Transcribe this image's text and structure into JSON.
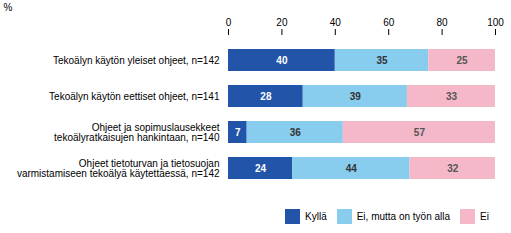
{
  "chart_data": {
    "type": "bar",
    "orientation": "horizontal",
    "stacked": true,
    "data_labels": true,
    "xlabel": "%",
    "categories": [
      "Tekoälyn käytön yleiset ohjeet, n=142",
      "Tekoälyn käytön eettiset ohjeet, n=141",
      "Ohjeet ja sopimuslausekkeet\ntekoälyratkaisujen hankintaan, n=140",
      "Ohjeet tietoturvan ja tietosuojan\nvarmistamiseen tekoälyä käytettäessä, n=142"
    ],
    "series": [
      {
        "name": "Kyllä",
        "color": "#2255aa",
        "values": [
          40,
          28,
          7,
          24
        ]
      },
      {
        "name": "Ei, mutta on työn alla",
        "color": "#88ccee",
        "values": [
          35,
          39,
          36,
          44
        ]
      },
      {
        "name": "Ei",
        "color": "#f4b8c8",
        "values": [
          25,
          33,
          57,
          32
        ]
      }
    ],
    "xlim": [
      0,
      100
    ],
    "xticks": [
      0,
      20,
      40,
      60,
      80,
      100
    ],
    "grid": false,
    "legend": "lower right"
  }
}
